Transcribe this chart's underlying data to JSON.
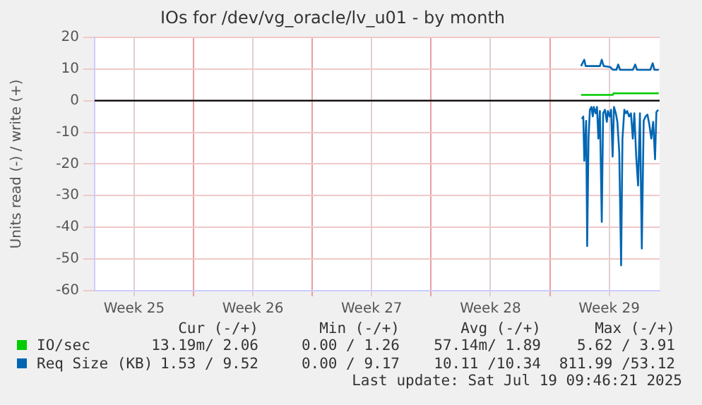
{
  "chart_data": {
    "type": "line",
    "title": "IOs for /dev/vg_oracle/lv_u01 - by month",
    "ylabel": "Units read (-) / write (+)",
    "xlim": [
      "2025-06-16T04:05",
      "2025-07-19T11:17"
    ],
    "xticks": [
      {
        "value": "2025-06-18T12:00",
        "label": "Week 25"
      },
      {
        "value": "2025-06-22",
        "label": null
      },
      {
        "value": "2025-06-25T12:00",
        "label": "Week 26"
      },
      {
        "value": "2025-06-29",
        "label": null
      },
      {
        "value": "2025-07-02T12:00",
        "label": "Week 27"
      },
      {
        "value": "2025-07-06",
        "label": null
      },
      {
        "value": "2025-07-09T12:00",
        "label": "Week 28"
      },
      {
        "value": "2025-07-13",
        "label": null
      },
      {
        "value": "2025-07-16T12:00",
        "label": "Week 29"
      }
    ],
    "ylim": [
      -60,
      20
    ],
    "yticks": [
      -60,
      -50,
      -40,
      -30,
      -20,
      -10,
      0,
      10,
      20
    ],
    "grid": true,
    "legend": "bottom",
    "marker": "none",
    "line_style": "solid",
    "ref_lines": [
      {
        "axis": "y",
        "value": 0,
        "label": null,
        "color": "#000000"
      }
    ],
    "series": [
      {
        "name": "IO/sec",
        "color": "#00cc00",
        "x": [
          "2025-07-14T20:10",
          "2025-07-16T16:48",
          "2025-07-16T18:00",
          "2025-07-19T10:05"
        ],
        "values": [
          1.8,
          1.8,
          2.3,
          2.3
        ]
      },
      {
        "name": "Req Size (KB)",
        "color": "#0066b3",
        "x": [
          "2025-07-14T20:10",
          "2025-07-15T00:43",
          "2025-07-15T02:38",
          "2025-07-15T22:48",
          "2025-07-16T01:26",
          "2025-07-16T04:05",
          "2025-07-16T13:26",
          "2025-07-16T16:48",
          "2025-07-16T22:05",
          "2025-07-17T00:43",
          "2025-07-17T03:22",
          "2025-07-17T21:22",
          "2025-07-18T00:43",
          "2025-07-18T03:22",
          "2025-07-18T22:05",
          "2025-07-19T01:26",
          "2025-07-19T04:05",
          "2025-07-19T10:05"
        ],
        "values": [
          10.9,
          12.9,
          10.9,
          10.9,
          12.9,
          10.9,
          10.6,
          9.8,
          9.7,
          11.4,
          9.7,
          9.7,
          11.4,
          9.7,
          9.7,
          11.8,
          9.7,
          9.7
        ]
      },
      {
        "color": "#0066b3",
        "x": [
          "2025-07-14T21:22",
          "2025-07-14T23:17",
          "2025-07-15T00:43",
          "2025-07-15T03:22",
          "2025-07-15T04:48",
          "2025-07-15T06:43",
          "2025-07-15T08:38",
          "2025-07-15T10:48",
          "2025-07-15T12:43",
          "2025-07-15T14:10",
          "2025-07-15T16:48",
          "2025-07-15T18:43",
          "2025-07-15T20:38",
          "2025-07-15T22:48",
          "2025-07-16T01:26",
          "2025-07-16T03:22",
          "2025-07-16T06:00",
          "2025-07-16T08:38",
          "2025-07-16T10:05",
          "2025-07-16T12:43",
          "2025-07-16T14:38",
          "2025-07-16T16:48",
          "2025-07-16T18:43",
          "2025-07-16T21:22",
          "2025-07-16T23:31",
          "2025-07-17T02:10",
          "2025-07-17T04:48",
          "2025-07-17T06:43",
          "2025-07-17T09:22",
          "2025-07-17T11:31",
          "2025-07-17T13:26",
          "2025-07-17T16:05",
          "2025-07-17T18:43",
          "2025-07-17T21:22",
          "2025-07-17T23:31",
          "2025-07-18T02:10",
          "2025-07-18T04:48",
          "2025-07-18T07:26",
          "2025-07-18T10:05",
          "2025-07-18T12:43",
          "2025-07-18T15:22",
          "2025-07-18T18:00",
          "2025-07-18T20:38",
          "2025-07-18T23:31",
          "2025-07-19T02:10",
          "2025-07-19T04:48",
          "2025-07-19T06:43",
          "2025-07-19T09:22"
        ],
        "values": [
          -5.8,
          -5,
          -19,
          -6.4,
          -45.9,
          -12,
          -2.9,
          -2,
          -5,
          -2,
          -4,
          -2,
          -12,
          -3.3,
          -38.3,
          -4,
          -2.9,
          -6.7,
          -3.3,
          -5,
          -2.9,
          -17.7,
          -2,
          -4,
          -6.7,
          -16.2,
          -52,
          -12,
          -2.9,
          -4,
          -3.3,
          -5,
          -4,
          -12,
          -4,
          -17.7,
          -26.8,
          -4,
          -46.7,
          -6.4,
          -5,
          -4.4,
          -7.4,
          -12,
          -6.7,
          -18.5,
          -3.6,
          -2.9
        ]
      }
    ],
    "annotations": [
      "Cur (-/+)",
      "Min (-/+)",
      "Avg (-/+)",
      "Max (-/+)",
      "13.19m/ 2.06",
      "0.00 / 1.26",
      "57.14m/ 1.89",
      "5.62 / 3.91",
      "1.53 / 9.52",
      "0.00 / 9.17",
      "10.11 /10.34",
      "811.99 /53.12",
      "Last update: Sat Jul 19 09:46:21 2025"
    ]
  }
}
